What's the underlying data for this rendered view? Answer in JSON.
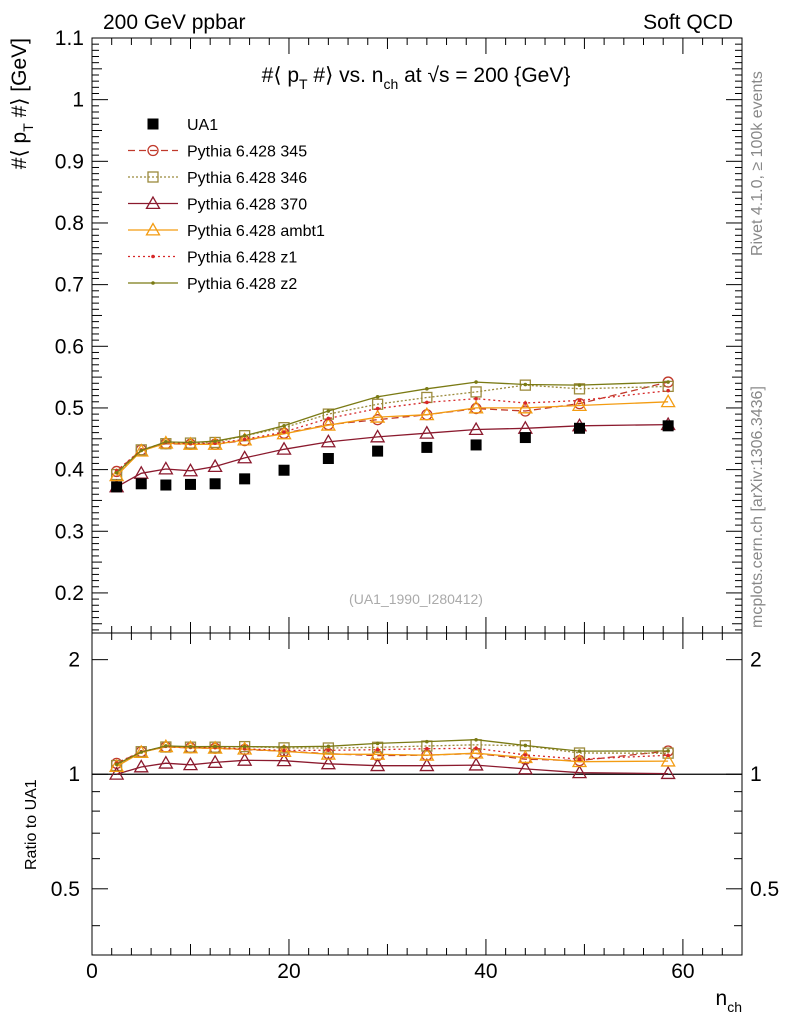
{
  "header": {
    "left": "200 GeV ppbar",
    "right": "Soft QCD"
  },
  "side": {
    "rivet": "Rivet 4.1.0, ≥ 100k events",
    "mcplots": "mcplots.cern.ch [arXiv:1306.3436]"
  },
  "chart_data": {
    "type": "scatter",
    "title": "#⟨ p_T #⟩ vs. n_ch at √s = 200 {GeV}",
    "ylabel": "#⟨ p_T #⟩ [GeV]",
    "ylabel_parts": {
      "main": "#⟨ p",
      "sub": "T",
      "tail": " #⟩ [GeV]"
    },
    "title_parts": {
      "a": "#⟨ p",
      "sub_t": "T",
      "b": " #⟩ vs. n",
      "sub_ch": "ch",
      "c": " at ",
      "sqrt": "√",
      "d": "s = 200 {GeV}"
    },
    "xlabel": "n_ch",
    "xlabel_parts": {
      "main": "n",
      "sub": "ch"
    },
    "ratio_ylabel": "Ratio to UA1",
    "watermark": "(UA1_1990_I280412)",
    "xlim": [
      0,
      66
    ],
    "ylim": [
      0.135,
      1.1
    ],
    "ratio_ylim": [
      0.335,
      2.35
    ],
    "xticks": [
      0,
      20,
      40,
      60
    ],
    "yticks": [
      0.2,
      0.3,
      0.4,
      0.5,
      0.6,
      0.7,
      0.8,
      0.9,
      1,
      1.1
    ],
    "ytick_labels": [
      "0.2",
      "0.3",
      "0.4",
      "0.5",
      "0.6",
      "0.7",
      "0.8",
      "0.9",
      "1",
      "1.1"
    ],
    "ratio_yticks": [
      0.5,
      1,
      2
    ],
    "ratio_ytick_labels": [
      "0.5",
      "1",
      "2"
    ],
    "x": [
      2.5,
      5,
      7.5,
      10,
      12.5,
      15.5,
      19.5,
      24,
      29,
      34,
      39,
      44,
      49.5,
      58.5
    ],
    "data": {
      "name": "UA1",
      "y": [
        0.372,
        0.377,
        0.375,
        0.376,
        0.377,
        0.385,
        0.399,
        0.418,
        0.43,
        0.436,
        0.44,
        0.452,
        0.467,
        0.471
      ],
      "ratio": [
        1,
        1,
        1,
        1,
        1,
        1,
        1,
        1,
        1,
        1,
        1,
        1,
        1,
        1
      ]
    },
    "series": [
      {
        "name": "Pythia 6.428 345",
        "color": "#c0392b",
        "dash": "7,4",
        "marker": "circle",
        "y": [
          0.397,
          0.432,
          0.442,
          0.441,
          0.441,
          0.447,
          0.459,
          0.473,
          0.481,
          0.489,
          0.499,
          0.495,
          0.507,
          0.542
        ],
        "ratio": [
          1.068,
          1.146,
          1.179,
          1.173,
          1.17,
          1.161,
          1.15,
          1.132,
          1.119,
          1.122,
          1.134,
          1.095,
          1.086,
          1.151
        ]
      },
      {
        "name": "Pythia 6.428 346",
        "color": "#9b8a3c",
        "dash": "2,2",
        "marker": "square",
        "y": [
          0.392,
          0.432,
          0.442,
          0.443,
          0.444,
          0.455,
          0.468,
          0.49,
          0.506,
          0.517,
          0.526,
          0.537,
          0.531,
          0.535
        ],
        "ratio": [
          1.054,
          1.146,
          1.179,
          1.178,
          1.178,
          1.182,
          1.173,
          1.172,
          1.177,
          1.186,
          1.195,
          1.188,
          1.137,
          1.136
        ]
      },
      {
        "name": "Pythia 6.428 370",
        "color": "#8b1a2e",
        "dash": "",
        "marker": "triangle",
        "y": [
          0.372,
          0.394,
          0.401,
          0.398,
          0.405,
          0.419,
          0.433,
          0.445,
          0.453,
          0.459,
          0.465,
          0.467,
          0.471,
          0.473
        ],
        "ratio": [
          1.0,
          1.045,
          1.069,
          1.059,
          1.074,
          1.088,
          1.085,
          1.065,
          1.053,
          1.053,
          1.057,
          1.033,
          1.009,
          1.004
        ]
      },
      {
        "name": "Pythia 6.428 ambt1",
        "color": "#f39c12",
        "dash": "",
        "marker": "triangle",
        "y": [
          0.39,
          0.43,
          0.443,
          0.441,
          0.441,
          0.448,
          0.458,
          0.472,
          0.485,
          0.489,
          0.5,
          0.5,
          0.504,
          0.51
        ],
        "ratio": [
          1.048,
          1.141,
          1.181,
          1.173,
          1.17,
          1.164,
          1.148,
          1.129,
          1.128,
          1.122,
          1.136,
          1.106,
          1.079,
          1.083
        ]
      },
      {
        "name": "Pythia 6.428 z1",
        "color": "#d62728",
        "dash": "2,3",
        "marker": "dot",
        "y": [
          0.398,
          0.432,
          0.444,
          0.442,
          0.443,
          0.449,
          0.461,
          0.483,
          0.499,
          0.509,
          0.515,
          0.508,
          0.512,
          0.528
        ],
        "ratio": [
          1.07,
          1.146,
          1.184,
          1.176,
          1.175,
          1.166,
          1.155,
          1.156,
          1.16,
          1.167,
          1.17,
          1.124,
          1.096,
          1.121
        ]
      },
      {
        "name": "Pythia 6.428 z2",
        "color": "#7a7a14",
        "dash": "",
        "marker": "dot",
        "y": [
          0.395,
          0.431,
          0.445,
          0.444,
          0.446,
          0.455,
          0.471,
          0.495,
          0.518,
          0.531,
          0.542,
          0.538,
          0.537,
          0.542
        ],
        "ratio": [
          1.062,
          1.143,
          1.187,
          1.181,
          1.183,
          1.182,
          1.18,
          1.184,
          1.205,
          1.218,
          1.232,
          1.19,
          1.15,
          1.151
        ]
      }
    ]
  }
}
